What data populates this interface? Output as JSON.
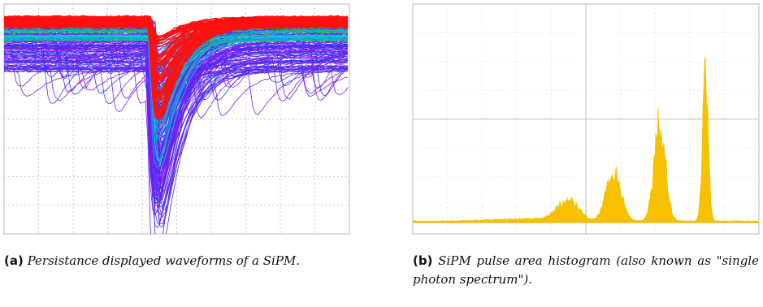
{
  "figures": [
    {
      "label": "(a)",
      "caption": "Persistance displayed waveforms of a SiPM."
    },
    {
      "label": "(b)",
      "caption": "SiPM pulse area histogram (also known as \"single photon spectrum\")."
    }
  ]
}
